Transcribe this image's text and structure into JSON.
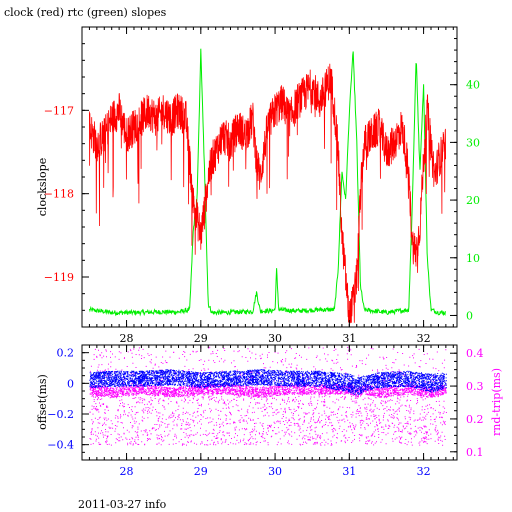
{
  "figure_title": "clock (red) rtc (green) slopes",
  "footer_label": "2011-03-27 info",
  "colors": {
    "clock": "#ff0000",
    "rtc": "#00ee00",
    "offset": "#0000ff",
    "rndtrip": "#ff00ff",
    "axis": "#000000"
  },
  "chart_data": [
    {
      "type": "line",
      "title": "clock (red) rtc (green) slopes",
      "xlabel": "",
      "ylabel": "clockslope",
      "y2label": "",
      "xlim": [
        27.4,
        32.45
      ],
      "ylim": [
        -119.6,
        -116.0
      ],
      "y2lim": [
        -2,
        50
      ],
      "x_ticks": [
        28,
        29,
        30,
        31,
        32
      ],
      "y_ticks": [
        -117,
        -118,
        -119
      ],
      "y2_ticks": [
        0,
        10,
        20,
        30,
        40
      ],
      "x_minor_step": 0.1,
      "y_minor_step": 0.2,
      "y2_minor_step": 2,
      "grid": false,
      "series": [
        {
          "name": "clock",
          "axis": "left",
          "x": [
            27.5,
            27.6,
            27.7,
            27.8,
            27.9,
            28.0,
            28.1,
            28.2,
            28.3,
            28.4,
            28.5,
            28.6,
            28.7,
            28.8,
            28.85,
            28.9,
            28.95,
            29.0,
            29.05,
            29.1,
            29.15,
            29.2,
            29.3,
            29.4,
            29.5,
            29.6,
            29.7,
            29.75,
            29.8,
            29.9,
            30.0,
            30.1,
            30.2,
            30.3,
            30.4,
            30.5,
            30.6,
            30.7,
            30.75,
            30.8,
            30.85,
            30.9,
            30.95,
            31.0,
            31.05,
            31.1,
            31.15,
            31.2,
            31.3,
            31.4,
            31.5,
            31.6,
            31.7,
            31.75,
            31.8,
            31.85,
            31.9,
            31.95,
            32.0,
            32.05,
            32.1,
            32.15,
            32.2,
            32.25,
            32.3
          ],
          "values": [
            -117.2,
            -117.4,
            -117.3,
            -117.1,
            -117.0,
            -117.3,
            -117.2,
            -117.1,
            -117.0,
            -117.1,
            -117.0,
            -117.1,
            -117.0,
            -117.1,
            -117.6,
            -118.1,
            -118.3,
            -118.5,
            -118.2,
            -117.8,
            -117.6,
            -117.5,
            -117.3,
            -117.4,
            -117.2,
            -117.3,
            -117.1,
            -117.6,
            -117.8,
            -117.2,
            -117.0,
            -116.9,
            -117.1,
            -116.9,
            -116.8,
            -116.7,
            -116.9,
            -116.7,
            -116.6,
            -117.0,
            -117.5,
            -118.5,
            -119.0,
            -119.5,
            -119.3,
            -119.0,
            -118.0,
            -117.4,
            -117.3,
            -117.2,
            -117.5,
            -117.4,
            -117.2,
            -117.4,
            -117.8,
            -118.6,
            -118.7,
            -118.4,
            -117.6,
            -117.0,
            -117.4,
            -117.8,
            -117.6,
            -117.5,
            -117.4
          ]
        },
        {
          "name": "rtc",
          "axis": "right",
          "x": [
            27.5,
            27.8,
            28.1,
            28.4,
            28.7,
            28.85,
            28.9,
            28.95,
            29.0,
            29.05,
            29.1,
            29.15,
            29.3,
            29.5,
            29.7,
            29.75,
            29.8,
            29.95,
            30.0,
            30.02,
            30.05,
            30.3,
            30.6,
            30.8,
            30.85,
            30.9,
            30.95,
            31.0,
            31.05,
            31.1,
            31.15,
            31.2,
            31.5,
            31.8,
            31.85,
            31.9,
            31.95,
            32.0,
            32.05,
            32.1,
            32.2,
            32.3
          ],
          "values": [
            1,
            0.5,
            0.5,
            0.6,
            0.6,
            1,
            15,
            20,
            46,
            25,
            2,
            0.5,
            0.5,
            0.6,
            0.7,
            4,
            0.8,
            0.8,
            1,
            8,
            1,
            0.8,
            1,
            1,
            8,
            25,
            20,
            35,
            46,
            30,
            5,
            1,
            0.5,
            1,
            20,
            45,
            25,
            40,
            10,
            1,
            0.5,
            0.5
          ]
        }
      ]
    },
    {
      "type": "scatter",
      "xlabel": "",
      "ylabel": "offset(ms)",
      "y2label": "rnd-trip(ms)",
      "xlim": [
        27.4,
        32.45
      ],
      "ylim": [
        -0.5,
        0.25
      ],
      "y2lim": [
        0.075,
        0.425
      ],
      "x_ticks": [
        28,
        29,
        30,
        31,
        32
      ],
      "y_ticks": [
        0.2,
        0,
        -0.2,
        -0.4
      ],
      "y2_ticks": [
        0.1,
        0.2,
        0.3,
        0.4
      ],
      "x_minor_step": 0.1,
      "y_minor_step": 0.05,
      "y2_minor_step": 0.025,
      "grid": false,
      "series": [
        {
          "name": "offset",
          "axis": "left",
          "x": [
            27.5,
            27.8,
            28.2,
            28.6,
            29.0,
            29.4,
            29.8,
            30.2,
            30.6,
            31.0,
            31.1,
            31.2,
            31.4,
            31.8,
            32.1,
            32.3
          ],
          "values": [
            0.02,
            0.03,
            0.03,
            0.04,
            0.02,
            0.03,
            0.04,
            0.03,
            0.03,
            0.0,
            -0.02,
            0.0,
            0.02,
            0.03,
            0.0,
            0.02
          ],
          "spread": [
            0.05,
            0.05,
            0.05,
            0.05,
            0.05,
            0.05,
            0.05,
            0.05,
            0.05,
            0.06,
            0.06,
            0.05,
            0.05,
            0.05,
            0.06,
            0.05
          ]
        },
        {
          "name": "rnd-trip",
          "axis": "right",
          "x": [
            27.5,
            27.8,
            28.2,
            28.6,
            29.0,
            29.4,
            29.8,
            30.2,
            30.6,
            31.0,
            31.1,
            31.2,
            31.4,
            31.8,
            32.1,
            32.3
          ],
          "values": [
            0.29,
            0.28,
            0.29,
            0.28,
            0.29,
            0.29,
            0.28,
            0.29,
            0.29,
            0.29,
            0.28,
            0.29,
            0.28,
            0.29,
            0.28,
            0.29
          ],
          "low": 0.12,
          "high": 0.42
        }
      ]
    }
  ]
}
